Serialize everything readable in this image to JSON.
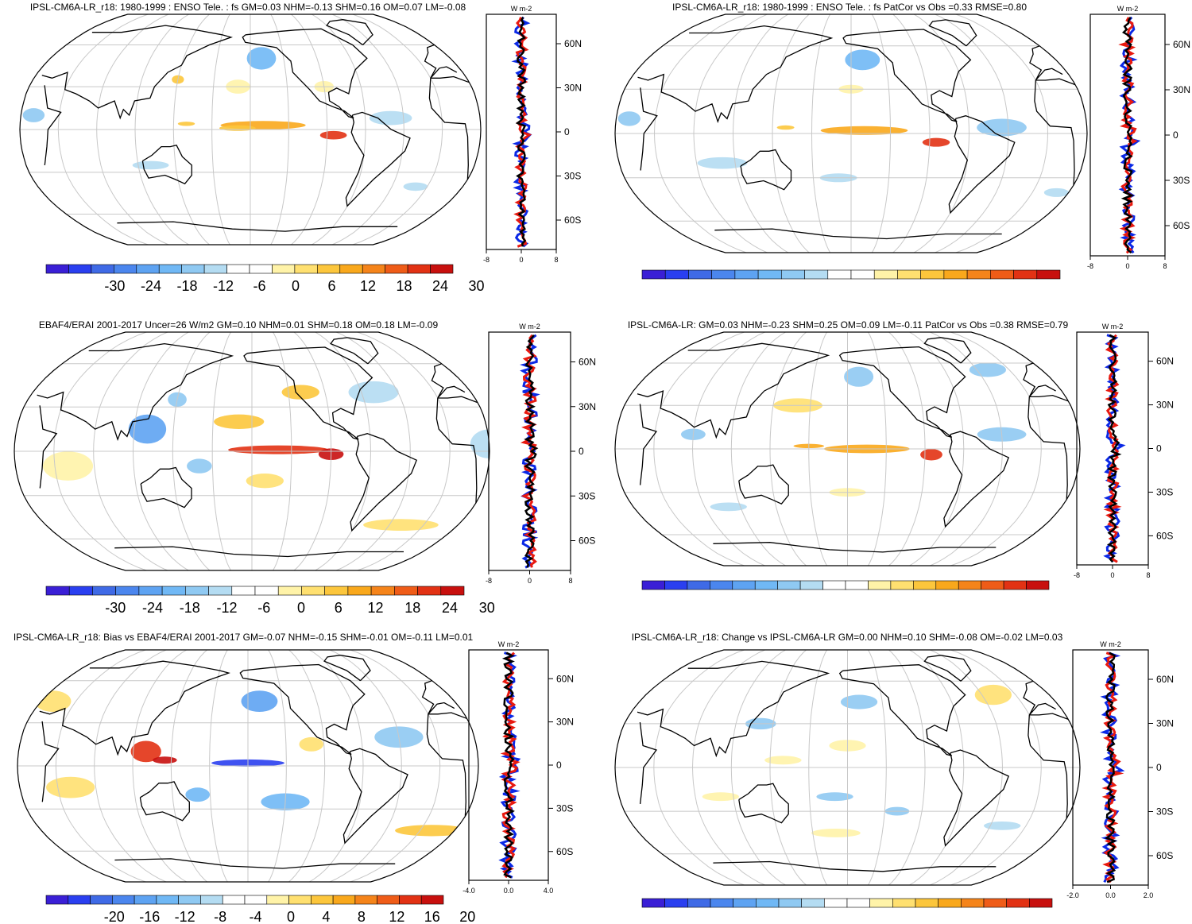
{
  "colors": {
    "scale": [
      "#3a1fd6",
      "#2a3ff0",
      "#3f6ae6",
      "#4b86ee",
      "#5ea3f2",
      "#70b8f5",
      "#8fc9f2",
      "#b4dcf2",
      "#ffffff",
      "#ffffff",
      "#fff3a8",
      "#ffe070",
      "#fcc63c",
      "#f9a81c",
      "#f5841a",
      "#ef5c18",
      "#e23214",
      "#c8100e"
    ],
    "model": "#0a28e6",
    "obs": "#e8190f",
    "multi": "#000000",
    "land": "#000000",
    "grid": "#c8c8c8"
  },
  "unit_label": "W m-2",
  "colorbars": {
    "wide": [
      "-30",
      "-24",
      "-18",
      "-12",
      "-6",
      "0",
      "6",
      "12",
      "18",
      "24",
      "30"
    ],
    "narrow": [
      "-20",
      "-16",
      "-12",
      "-8",
      "-4",
      "0",
      "4",
      "8",
      "12",
      "16",
      "20"
    ]
  },
  "lat_ticks": [
    "60N",
    "30N",
    "0",
    "30S",
    "60S"
  ],
  "chart_data": [
    {
      "type": "heatmap",
      "title": "IPSL-CM6A-LR_r18: 1980-1999 : ENSO Tele. : fs GM=0.03 NHM=-0.13 SHM=0.16 OM=0.07 LM=-0.08",
      "projection": "robinson",
      "colorbar": "wide",
      "zonal_ticks": [
        "-8",
        "0",
        "8"
      ],
      "zonal_xlim": [
        -8,
        8
      ],
      "anomalies": [
        {
          "lon": -150,
          "lat": 3,
          "w": 70,
          "h": 6,
          "value": 16
        },
        {
          "lon": -95,
          "lat": -4,
          "w": 22,
          "h": 6,
          "value": 24
        },
        {
          "lon": -170,
          "lat": 1,
          "w": 30,
          "h": 4,
          "value": 12
        },
        {
          "lon": 150,
          "lat": 4,
          "w": 14,
          "h": 3,
          "value": 10
        },
        {
          "lon": -150,
          "lat": 50,
          "w": 24,
          "h": 16,
          "value": -12
        },
        {
          "lon": 30,
          "lat": 10,
          "w": 18,
          "h": 10,
          "value": -8
        },
        {
          "lon": -50,
          "lat": 8,
          "w": 35,
          "h": 10,
          "value": -6
        },
        {
          "lon": -170,
          "lat": 30,
          "w": 20,
          "h": 10,
          "value": 6
        },
        {
          "lon": 120,
          "lat": -25,
          "w": 30,
          "h": 6,
          "value": -6
        },
        {
          "lon": -20,
          "lat": -40,
          "w": 20,
          "h": 6,
          "value": -6
        },
        {
          "lon": 140,
          "lat": 35,
          "w": 10,
          "h": 6,
          "value": 12
        },
        {
          "lon": -100,
          "lat": 30,
          "w": 16,
          "h": 8,
          "value": 6
        }
      ]
    },
    {
      "type": "heatmap",
      "title": "IPSL-CM6A-LR_r18: 1980-1999 : ENSO Tele. : fs PatCor vs Obs =0.33 RMSE=0.80",
      "projection": "robinson",
      "colorbar": "wide",
      "zonal_ticks": [
        "-8",
        "0",
        "8"
      ],
      "zonal_xlim": [
        -8,
        8
      ],
      "anomalies": [
        {
          "lon": -150,
          "lat": 2,
          "w": 70,
          "h": 6,
          "value": 14
        },
        {
          "lon": -95,
          "lat": -6,
          "w": 22,
          "h": 6,
          "value": 24
        },
        {
          "lon": 150,
          "lat": 4,
          "w": 14,
          "h": 3,
          "value": 10
        },
        {
          "lon": -150,
          "lat": 50,
          "w": 28,
          "h": 14,
          "value": -12
        },
        {
          "lon": 30,
          "lat": 10,
          "w": 18,
          "h": 10,
          "value": -10
        },
        {
          "lon": -45,
          "lat": 4,
          "w": 40,
          "h": 12,
          "value": -8
        },
        {
          "lon": 100,
          "lat": -20,
          "w": 40,
          "h": 8,
          "value": -6
        },
        {
          "lon": -170,
          "lat": -30,
          "w": 30,
          "h": 6,
          "value": -6
        },
        {
          "lon": -160,
          "lat": 30,
          "w": 20,
          "h": 6,
          "value": 6
        },
        {
          "lon": 10,
          "lat": -40,
          "w": 20,
          "h": 6,
          "value": -6
        }
      ]
    },
    {
      "type": "heatmap",
      "title": "EBAF4/ERAI 2001-2017 Uncer=26 W/m2 GM=0.10 NHM=0.01 SHM=0.18 OM=0.18 LM=-0.09",
      "projection": "robinson",
      "colorbar": "wide",
      "zonal_ticks": [
        "-8",
        "0",
        "8"
      ],
      "zonal_xlim": [
        -8,
        8
      ],
      "anomalies": [
        {
          "lon": -140,
          "lat": 1,
          "w": 80,
          "h": 6,
          "value": 24
        },
        {
          "lon": -100,
          "lat": -2,
          "w": 20,
          "h": 8,
          "value": 28
        },
        {
          "lon": -170,
          "lat": 20,
          "w": 40,
          "h": 10,
          "value": 10
        },
        {
          "lon": 120,
          "lat": 15,
          "w": 30,
          "h": 20,
          "value": -14
        },
        {
          "lon": 140,
          "lat": 35,
          "w": 15,
          "h": 10,
          "value": -10
        },
        {
          "lon": -150,
          "lat": -20,
          "w": 30,
          "h": 10,
          "value": 8
        },
        {
          "lon": -120,
          "lat": 40,
          "w": 30,
          "h": 10,
          "value": 10
        },
        {
          "lon": 160,
          "lat": -10,
          "w": 20,
          "h": 10,
          "value": -10
        },
        {
          "lon": 60,
          "lat": -10,
          "w": 40,
          "h": 20,
          "value": 6
        },
        {
          "lon": -60,
          "lat": 40,
          "w": 40,
          "h": 15,
          "value": -6
        },
        {
          "lon": -30,
          "lat": -50,
          "w": 60,
          "h": 8,
          "value": 8
        },
        {
          "lon": 20,
          "lat": 5,
          "w": 30,
          "h": 20,
          "value": -6
        }
      ]
    },
    {
      "type": "heatmap",
      "title": "IPSL-CM6A-LR: GM=0.03 NHM=-0.23 SHM=0.25 OM=0.09 LM=-0.11 PatCor vs Obs =0.38 RMSE=0.79",
      "projection": "robinson",
      "colorbar": "wide",
      "zonal_ticks": [
        "-8",
        "0",
        "8"
      ],
      "zonal_xlim": [
        -8,
        8
      ],
      "anomalies": [
        {
          "lon": -145,
          "lat": 0,
          "w": 70,
          "h": 6,
          "value": 16
        },
        {
          "lon": -95,
          "lat": -4,
          "w": 18,
          "h": 8,
          "value": 24
        },
        {
          "lon": 160,
          "lat": 30,
          "w": 40,
          "h": 10,
          "value": 8
        },
        {
          "lon": 170,
          "lat": 2,
          "w": 25,
          "h": 3,
          "value": 14
        },
        {
          "lon": -150,
          "lat": 50,
          "w": 24,
          "h": 14,
          "value": -10
        },
        {
          "lon": -40,
          "lat": 10,
          "w": 40,
          "h": 10,
          "value": -8
        },
        {
          "lon": 80,
          "lat": 10,
          "w": 20,
          "h": 8,
          "value": -8
        },
        {
          "lon": -30,
          "lat": 55,
          "w": 30,
          "h": 10,
          "value": -8
        },
        {
          "lon": -160,
          "lat": -30,
          "w": 30,
          "h": 6,
          "value": 6
        },
        {
          "lon": 100,
          "lat": -40,
          "w": 30,
          "h": 6,
          "value": -6
        }
      ]
    },
    {
      "type": "heatmap",
      "title": "IPSL-CM6A-LR_r18: Bias vs EBAF4/ERAI 2001-2017 GM=-0.07 NHM=-0.15 SHM=-0.01 OM=-0.11 LM=0.01",
      "projection": "robinson",
      "colorbar": "narrow",
      "zonal_ticks": [
        "-4.0",
        "0.0",
        "4.0"
      ],
      "zonal_xlim": [
        -4,
        4
      ],
      "anomalies": [
        {
          "lon": -160,
          "lat": 2,
          "w": 60,
          "h": 5,
          "value": -16
        },
        {
          "lon": 120,
          "lat": 10,
          "w": 25,
          "h": 15,
          "value": 16
        },
        {
          "lon": 135,
          "lat": 4,
          "w": 20,
          "h": 5,
          "value": 20
        },
        {
          "lon": -150,
          "lat": 45,
          "w": 30,
          "h": 15,
          "value": -10
        },
        {
          "lon": -130,
          "lat": -25,
          "w": 40,
          "h": 12,
          "value": -8
        },
        {
          "lon": 60,
          "lat": -15,
          "w": 40,
          "h": 15,
          "value": 6
        },
        {
          "lon": -40,
          "lat": 20,
          "w": 40,
          "h": 15,
          "value": -6
        },
        {
          "lon": 0,
          "lat": -45,
          "w": 60,
          "h": 8,
          "value": 8
        },
        {
          "lon": 160,
          "lat": -20,
          "w": 20,
          "h": 10,
          "value": -8
        },
        {
          "lon": -110,
          "lat": 15,
          "w": 20,
          "h": 10,
          "value": 6
        },
        {
          "lon": 30,
          "lat": 45,
          "w": 30,
          "h": 15,
          "value": 6
        }
      ]
    },
    {
      "type": "heatmap",
      "title": "IPSL-CM6A-LR_r18: Change vs IPSL-CM6A-LR GM=0.00 NHM=0.10 SHM=-0.08 OM=-0.02 LM=0.03",
      "projection": "robinson",
      "colorbar": "narrow",
      "zonal_ticks": [
        "-2.0",
        "0.0",
        "2.0"
      ],
      "zonal_xlim": [
        -2,
        2
      ],
      "anomalies": [
        {
          "lon": -30,
          "lat": 50,
          "w": 30,
          "h": 14,
          "value": 6
        },
        {
          "lon": -150,
          "lat": 45,
          "w": 30,
          "h": 10,
          "value": -6
        },
        {
          "lon": 130,
          "lat": 30,
          "w": 25,
          "h": 8,
          "value": -6
        },
        {
          "lon": -160,
          "lat": 15,
          "w": 30,
          "h": 8,
          "value": 4
        },
        {
          "lon": -170,
          "lat": -20,
          "w": 30,
          "h": 6,
          "value": -6
        },
        {
          "lon": -120,
          "lat": -30,
          "w": 20,
          "h": 6,
          "value": -6
        },
        {
          "lon": 100,
          "lat": -20,
          "w": 30,
          "h": 6,
          "value": 4
        },
        {
          "lon": -170,
          "lat": -45,
          "w": 40,
          "h": 6,
          "value": 4
        },
        {
          "lon": -30,
          "lat": -40,
          "w": 30,
          "h": 6,
          "value": -4
        },
        {
          "lon": 150,
          "lat": 5,
          "w": 30,
          "h": 6,
          "value": 4
        }
      ]
    }
  ]
}
